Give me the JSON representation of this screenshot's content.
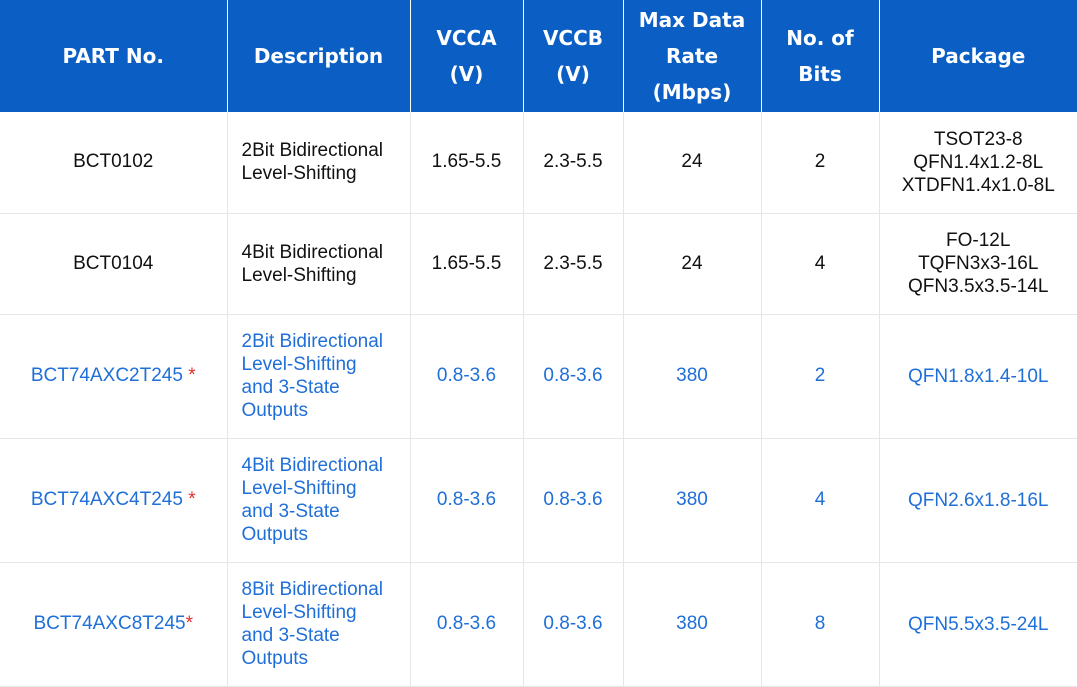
{
  "header": {
    "part_no": "PART No.",
    "description": "Description",
    "vcca": "VCCA\n(V)",
    "vccb": "VCCB\n(V)",
    "max_rate": "Max Data\nRate (Mbps)",
    "bits": "No. of\nBits",
    "package": "Package"
  },
  "rows": [
    {
      "part": "BCT0102",
      "star": "",
      "description": "2Bit Bidirectional\nLevel-Shifting",
      "vcca": "1.65-5.5",
      "vccb": "2.3-5.5",
      "rate": "24",
      "bits": "2",
      "package": "TSOT23-8\nQFN1.4x1.2-8L\nXTDFN1.4x1.0-8L"
    },
    {
      "part": "BCT0104",
      "star": "",
      "description": "4Bit Bidirectional\nLevel-Shifting",
      "vcca": "1.65-5.5",
      "vccb": "2.3-5.5",
      "rate": "24",
      "bits": "4",
      "package": "FO-12L\nTQFN3x3-16L\nQFN3.5x3.5-14L"
    },
    {
      "part": "BCT74AXC2T245 ",
      "star": "*",
      "description": "2Bit Bidirectional\nLevel-Shifting\nand 3-State\nOutputs",
      "vcca": "0.8-3.6",
      "vccb": "0.8-3.6",
      "rate": "380",
      "bits": "2",
      "package": "QFN1.8x1.4-10L"
    },
    {
      "part": "BCT74AXC4T245 ",
      "star": "*",
      "description": "4Bit Bidirectional\nLevel-Shifting\nand 3-State\nOutputs",
      "vcca": "0.8-3.6",
      "vccb": "0.8-3.6",
      "rate": "380",
      "bits": "4",
      "package": "QFN2.6x1.8-16L"
    },
    {
      "part": "BCT74AXC8T245",
      "star": "*",
      "description": "8Bit Bidirectional\nLevel-Shifting\nand 3-State\nOutputs",
      "vcca": "0.8-3.6",
      "vccb": "0.8-3.6",
      "rate": "380",
      "bits": "8",
      "package": "QFN5.5x3.5-24L"
    }
  ],
  "colors": {
    "header_bg": "#0b5fc4",
    "header_text": "#ffffff",
    "link_text": "#1f6fd8",
    "star": "#e03030"
  }
}
